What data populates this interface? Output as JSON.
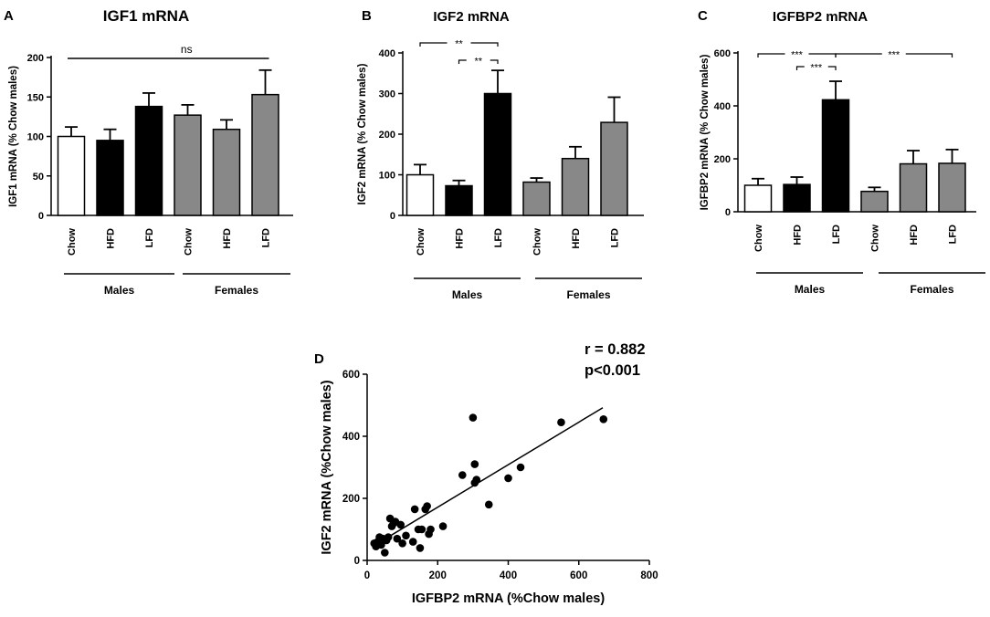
{
  "chart_data": [
    {
      "panel": "A",
      "type": "bar",
      "title": "IGF1 mRNA",
      "ylabel": "IGF1 mRNA (% Chow males)",
      "ylim": [
        0,
        200
      ],
      "yticks": [
        0,
        50,
        100,
        150,
        200
      ],
      "categories": [
        "Chow",
        "HFD",
        "LFD",
        "Chow",
        "HFD",
        "LFD"
      ],
      "values": [
        100,
        95,
        138,
        127,
        109,
        153
      ],
      "errors": [
        12,
        14,
        17,
        13,
        12,
        31
      ],
      "fill_colors": [
        "#ffffff",
        "#000000",
        "#000000",
        "#888888",
        "#888888",
        "#888888"
      ],
      "groups": [
        "Males",
        "Females"
      ],
      "annotations": [
        {
          "from": 0,
          "to": 5,
          "label": "ns"
        }
      ]
    },
    {
      "panel": "B",
      "type": "bar",
      "title": "IGF2 mRNA",
      "ylabel": "IGF2 mRNA (% Chow males)",
      "ylim": [
        0,
        400
      ],
      "yticks": [
        0,
        100,
        200,
        300,
        400
      ],
      "categories": [
        "Chow",
        "HFD",
        "LFD",
        "Chow",
        "HFD",
        "LFD"
      ],
      "values": [
        100,
        73,
        300,
        82,
        140,
        229
      ],
      "errors": [
        25,
        13,
        57,
        10,
        29,
        62
      ],
      "fill_colors": [
        "#ffffff",
        "#000000",
        "#000000",
        "#888888",
        "#888888",
        "#888888"
      ],
      "groups": [
        "Males",
        "Females"
      ],
      "annotations": [
        {
          "from": 0,
          "to": 2,
          "label": "**"
        },
        {
          "from": 1,
          "to": 2,
          "label": "**"
        }
      ]
    },
    {
      "panel": "C",
      "type": "bar",
      "title": "IGFBP2 mRNA",
      "ylabel": "IGFBP2 mRNA (% Chow males)",
      "ylim": [
        0,
        600
      ],
      "yticks": [
        0,
        200,
        400,
        600
      ],
      "categories": [
        "Chow",
        "HFD",
        "LFD",
        "Chow",
        "HFD",
        "LFD"
      ],
      "values": [
        100,
        103,
        423,
        77,
        181,
        183
      ],
      "errors": [
        25,
        28,
        70,
        15,
        50,
        52
      ],
      "fill_colors": [
        "#ffffff",
        "#000000",
        "#000000",
        "#888888",
        "#888888",
        "#888888"
      ],
      "groups": [
        "Males",
        "Females"
      ],
      "annotations": [
        {
          "from": 0,
          "to": 2,
          "label": "***"
        },
        {
          "from": 1,
          "to": 2,
          "label": "***"
        },
        {
          "from": 2,
          "to": 5,
          "label": "***"
        }
      ]
    },
    {
      "panel": "D",
      "type": "scatter",
      "xlabel": "IGFBP2 mRNA (%Chow males)",
      "ylabel": "IGF2 mRNA (%Chow males)",
      "xlim": [
        0,
        800
      ],
      "ylim": [
        0,
        600
      ],
      "xticks": [
        0,
        200,
        400,
        600,
        800
      ],
      "yticks": [
        0,
        200,
        400,
        600
      ],
      "stats": [
        "r = 0.882",
        "p<0.001"
      ],
      "fit_line": {
        "x": [
          20,
          668
        ],
        "y": [
          48,
          492
        ]
      },
      "points": [
        {
          "x": 20,
          "y": 55
        },
        {
          "x": 25,
          "y": 45
        },
        {
          "x": 30,
          "y": 60
        },
        {
          "x": 35,
          "y": 75
        },
        {
          "x": 40,
          "y": 50
        },
        {
          "x": 45,
          "y": 70
        },
        {
          "x": 50,
          "y": 25
        },
        {
          "x": 55,
          "y": 65
        },
        {
          "x": 60,
          "y": 75
        },
        {
          "x": 65,
          "y": 135
        },
        {
          "x": 70,
          "y": 110
        },
        {
          "x": 75,
          "y": 120
        },
        {
          "x": 80,
          "y": 125
        },
        {
          "x": 85,
          "y": 70
        },
        {
          "x": 95,
          "y": 115
        },
        {
          "x": 100,
          "y": 55
        },
        {
          "x": 110,
          "y": 80
        },
        {
          "x": 130,
          "y": 60
        },
        {
          "x": 135,
          "y": 165
        },
        {
          "x": 145,
          "y": 100
        },
        {
          "x": 150,
          "y": 40
        },
        {
          "x": 155,
          "y": 100
        },
        {
          "x": 165,
          "y": 165
        },
        {
          "x": 170,
          "y": 175
        },
        {
          "x": 175,
          "y": 85
        },
        {
          "x": 180,
          "y": 100
        },
        {
          "x": 215,
          "y": 110
        },
        {
          "x": 270,
          "y": 275
        },
        {
          "x": 300,
          "y": 460
        },
        {
          "x": 305,
          "y": 310
        },
        {
          "x": 305,
          "y": 250
        },
        {
          "x": 310,
          "y": 260
        },
        {
          "x": 345,
          "y": 180
        },
        {
          "x": 400,
          "y": 265
        },
        {
          "x": 435,
          "y": 300
        },
        {
          "x": 550,
          "y": 445
        },
        {
          "x": 670,
          "y": 455
        }
      ]
    }
  ]
}
